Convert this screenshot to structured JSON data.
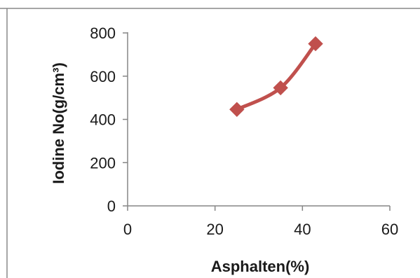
{
  "chart_data": {
    "type": "line",
    "title": "",
    "xlabel": "Asphalten(%)",
    "ylabel": "Iodine No(g/cm³)",
    "xlim": [
      0,
      60
    ],
    "ylim": [
      0,
      800
    ],
    "x_ticks": [
      0,
      20,
      40,
      60
    ],
    "y_ticks": [
      0,
      200,
      400,
      600,
      800
    ],
    "grid": false,
    "legend": "none",
    "series": [
      {
        "color": "#c0504d",
        "marker": "diamond",
        "smooth": true,
        "points": [
          {
            "x": 25,
            "y": 446
          },
          {
            "x": 35,
            "y": 546
          },
          {
            "x": 43,
            "y": 750
          }
        ]
      }
    ]
  }
}
